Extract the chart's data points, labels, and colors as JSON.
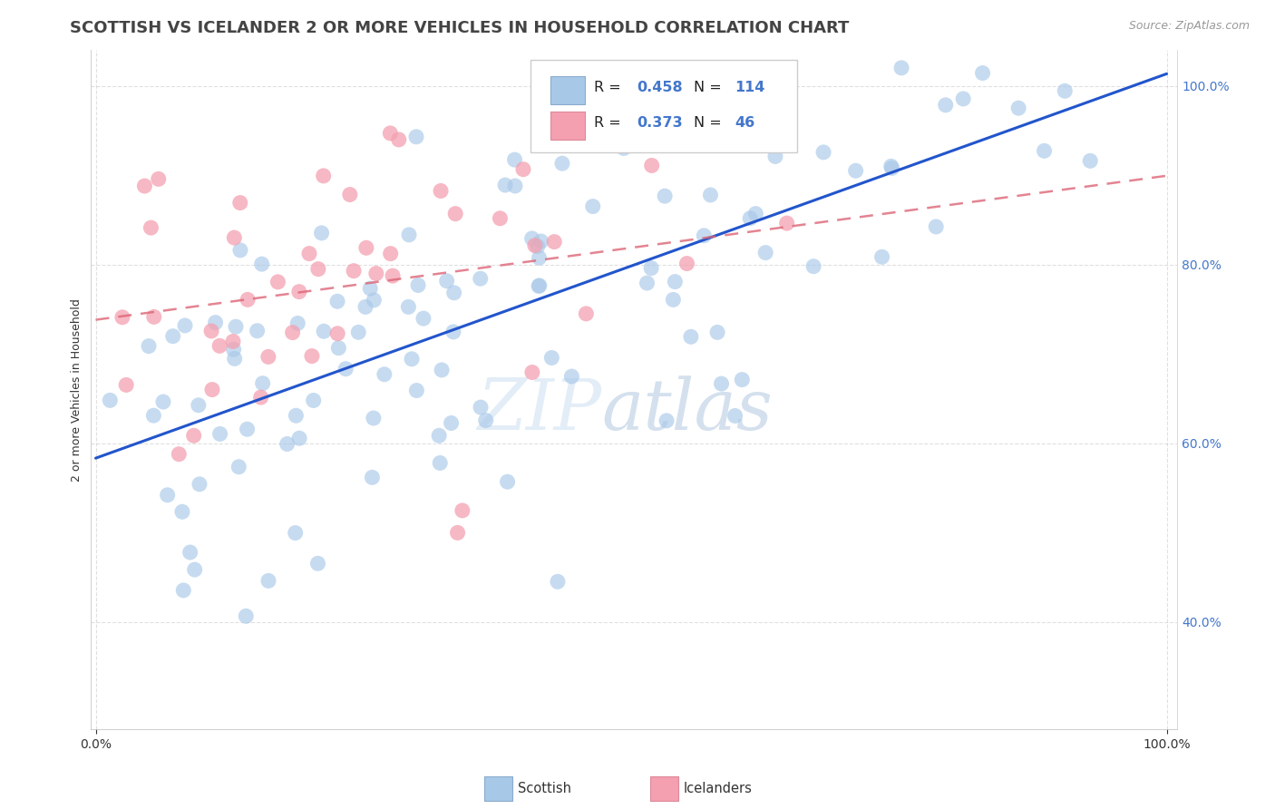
{
  "title": "SCOTTISH VS ICELANDER 2 OR MORE VEHICLES IN HOUSEHOLD CORRELATION CHART",
  "source": "Source: ZipAtlas.com",
  "ylabel": "2 or more Vehicles in Household",
  "scottish_R": 0.458,
  "scottish_N": 114,
  "icelander_R": 0.373,
  "icelander_N": 46,
  "scottish_color": "#A8C8E8",
  "icelander_color": "#F4A0B0",
  "scottish_line_color": "#2255CC",
  "icelander_line_color": "#DD6677",
  "background_color": "#FFFFFF",
  "watermark_zip": "ZIP",
  "watermark_atlas": "atlas",
  "title_fontsize": 13,
  "axis_label_fontsize": 9,
  "ytick_color": "#4477CC",
  "xtick_color": "#333333",
  "scottish_line_intercept": 0.595,
  "scottish_line_slope": 0.405,
  "icelander_line_intercept": 0.695,
  "icelander_line_slope": 0.305,
  "ymin": 0.28,
  "ymax": 1.04,
  "xmin": -0.005,
  "xmax": 1.01
}
